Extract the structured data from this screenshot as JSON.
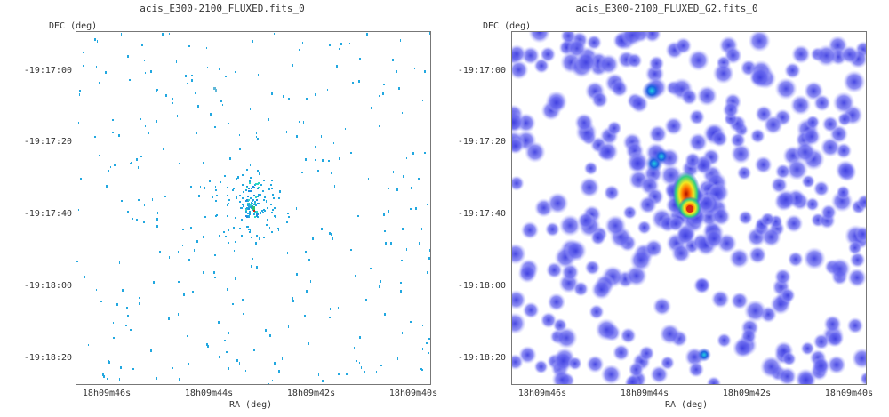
{
  "panels": [
    {
      "title": "acis_E300-2100_FLUXED.fits_0",
      "ylabel": "DEC (deg)",
      "xlabel": "RA (deg)",
      "yticks": [
        "-19:17:00",
        "-19:17:20",
        "-19:17:40",
        "-19:18:00",
        "-19:18:20"
      ],
      "xticks": [
        "18h09m46s",
        "18h09m44s",
        "18h09m42s",
        "18h09m40s"
      ],
      "colormap": "cyan-sparse",
      "background": "#ffffff"
    },
    {
      "title": "acis_E300-2100_FLUXED_G2.fits_0",
      "ylabel": "DEC (deg)",
      "xlabel": "RA (deg)",
      "yticks": [
        "-19:17:00",
        "-19:17:20",
        "-19:17:40",
        "-19:18:00",
        "-19:18:20"
      ],
      "xticks": [
        "18h09m46s",
        "18h09m44s",
        "18h09m42s",
        "18h09m40s"
      ],
      "colormap": "blue-smoothed",
      "background": "#ffffff"
    }
  ],
  "colors": {
    "sparse_pixel": "#22a8e0",
    "smoothed_blob": "#5a5ae6",
    "hot_core": "#d42a10",
    "warm": "#e8e020",
    "mid": "#30d080"
  }
}
